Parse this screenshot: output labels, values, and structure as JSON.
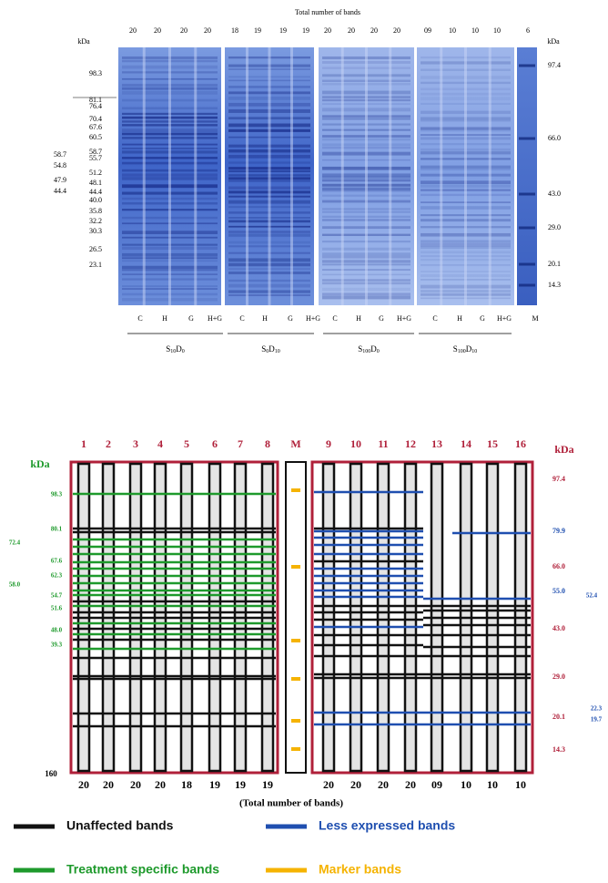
{
  "top_panel": {
    "title": "Total number of bands",
    "band_counts": [
      "20",
      "20",
      "20",
      "20",
      "18",
      "19",
      "19",
      "19",
      "20",
      "20",
      "20",
      "20",
      "09",
      "10",
      "10",
      "10",
      "6"
    ],
    "kda_left": "kDa",
    "kda_right": "kDa",
    "left_markers": [
      "98.3",
      "81.1",
      "76.4",
      "70.4",
      "67.6",
      "60.5",
      "58.7",
      "55.7",
      "51.2",
      "48.1",
      "44.4",
      "40.0",
      "35.8",
      "32.2",
      "30.3",
      "26.5",
      "23.1"
    ],
    "left_outer_markers": [
      "58.7",
      "54.8",
      "47.9",
      "44.4"
    ],
    "right_markers": [
      "97.4",
      "66.0",
      "43.0",
      "29.0",
      "20.1",
      "14.3"
    ],
    "lane_labels": [
      "C",
      "H",
      "G",
      "H+G",
      "C",
      "H",
      "G",
      "H+G",
      "C",
      "H",
      "G",
      "H+G",
      "C",
      "H",
      "G",
      "H+G",
      "M"
    ],
    "groups": [
      {
        "parts": [
          "S",
          "10",
          "D",
          "0"
        ]
      },
      {
        "parts": [
          "S",
          "0",
          "D",
          "10"
        ]
      },
      {
        "parts": [
          "S",
          "100",
          "D",
          "0"
        ]
      },
      {
        "parts": [
          "S",
          "100",
          "D",
          "10"
        ]
      }
    ]
  },
  "bottom_panel": {
    "lane_numbers": [
      "1",
      "2",
      "3",
      "4",
      "5",
      "6",
      "7",
      "8",
      "M",
      "9",
      "10",
      "11",
      "12",
      "13",
      "14",
      "15",
      "16"
    ],
    "kda_left": "kDa",
    "kda_right": "kDa",
    "left_markers": [
      "98.3",
      "80.1",
      "67.6",
      "62.3",
      "54.7",
      "51.6",
      "48.0",
      "39.3"
    ],
    "left_outer_markers": [
      "72.4",
      "58.0"
    ],
    "bottom_left_label": "160",
    "right_markers": [
      "97.4",
      "66.0",
      "43.0",
      "29.0",
      "20.1",
      "14.3"
    ],
    "right_blue_markers": [
      "79.9",
      "55.0"
    ],
    "right_blue_outer_markers": [
      "52.4",
      "22.3",
      "19.7"
    ],
    "band_counts": [
      "20",
      "20",
      "20",
      "20",
      "18",
      "19",
      "19",
      "19",
      "20",
      "20",
      "20",
      "20",
      "09",
      "10",
      "10",
      "10"
    ],
    "counts_caption": "(Total number of bands)"
  },
  "legend": [
    {
      "label": "Unaffected bands",
      "color": "#111111"
    },
    {
      "label": "Less expressed bands",
      "color": "#1f4fb0"
    },
    {
      "label": "Treatment specific bands",
      "color": "#1e9a2c"
    },
    {
      "label": "Marker bands",
      "color": "#f5b301"
    }
  ]
}
